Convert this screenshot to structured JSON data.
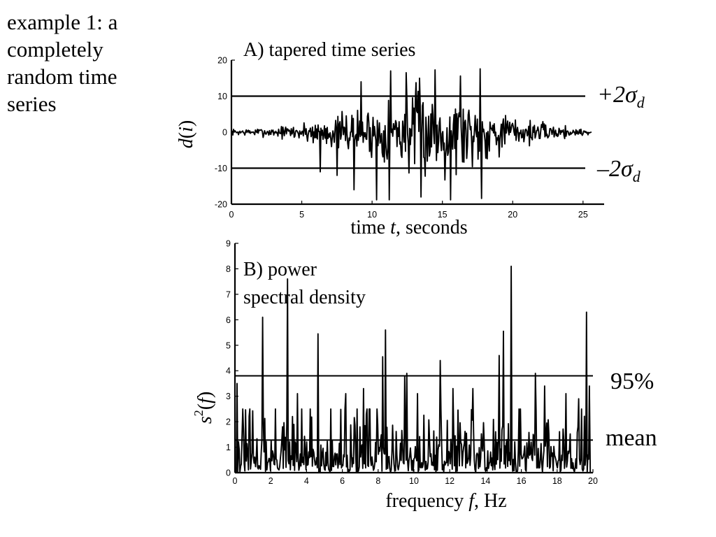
{
  "slide": {
    "title_lines": [
      "example 1: a",
      "completely",
      "random time",
      "series"
    ]
  },
  "chart_data": [
    {
      "type": "line",
      "title": "A) tapered time series",
      "xlabel": "time t, seconds",
      "ylabel": "d(i)",
      "xlim": [
        0,
        26.5
      ],
      "ylim": [
        -20,
        20
      ],
      "x_ticks": [
        0,
        5,
        10,
        15,
        20,
        25
      ],
      "y_ticks": [
        20,
        10,
        0,
        -10,
        -20
      ],
      "x_range": [
        0,
        25.6
      ],
      "n_points": 512,
      "envelope": [
        [
          0,
          1.2
        ],
        [
          3,
          2.0
        ],
        [
          5,
          4.0
        ],
        [
          7,
          6.5
        ],
        [
          9.5,
          10.0
        ],
        [
          12,
          15.0
        ],
        [
          13,
          18.0
        ],
        [
          15.5,
          18.0
        ],
        [
          17,
          15.0
        ],
        [
          19,
          9.0
        ],
        [
          21,
          5.0
        ],
        [
          23,
          3.0
        ],
        [
          25.6,
          1.2
        ]
      ],
      "peaks": [
        {
          "x": 11.3,
          "y": 17
        },
        {
          "x": 12.4,
          "y": 16.5
        },
        {
          "x": 13.4,
          "y": 15
        },
        {
          "x": 14.5,
          "y": 17.3
        },
        {
          "x": 15.6,
          "y": 19.7
        },
        {
          "x": 16.3,
          "y": 15.6
        },
        {
          "x": 17.7,
          "y": 17.6
        },
        {
          "x": 10.3,
          "y": -18.8
        },
        {
          "x": 11.2,
          "y": -18.8
        },
        {
          "x": 13.5,
          "y": -18.0
        },
        {
          "x": 15.6,
          "y": -18.8
        },
        {
          "x": 17.8,
          "y": -18.4
        },
        {
          "x": 8.7,
          "y": -16.0
        },
        {
          "x": 6.3,
          "y": -11.0
        },
        {
          "x": 7.5,
          "y": -12.0
        },
        {
          "x": 9.2,
          "y": 14.0
        }
      ],
      "reference_lines": [
        {
          "name": "+2σd",
          "y": 10
        },
        {
          "name": "−2σd",
          "y": -10
        }
      ]
    },
    {
      "type": "line",
      "title_lines": [
        "B) power",
        "spectral density"
      ],
      "xlabel": "frequency f, Hz",
      "ylabel": "s2(f)",
      "xlim": [
        0,
        20
      ],
      "ylim": [
        0,
        9
      ],
      "x_ticks": [
        0,
        2,
        4,
        6,
        8,
        10,
        12,
        14,
        16,
        18,
        20
      ],
      "y_ticks": [
        9,
        8,
        7,
        6,
        5,
        4,
        3,
        2,
        1,
        0
      ],
      "x_range": [
        0,
        19.8
      ],
      "n_points": 500,
      "baseline_max": 2.5,
      "peaks": [
        {
          "x": 1.55,
          "y": 6.1
        },
        {
          "x": 2.95,
          "y": 7.6
        },
        {
          "x": 4.65,
          "y": 5.45
        },
        {
          "x": 8.25,
          "y": 4.55
        },
        {
          "x": 8.4,
          "y": 5.6
        },
        {
          "x": 9.5,
          "y": 3.8
        },
        {
          "x": 9.6,
          "y": 3.9
        },
        {
          "x": 11.45,
          "y": 4.4
        },
        {
          "x": 14.75,
          "y": 4.6
        },
        {
          "x": 15.0,
          "y": 5.55
        },
        {
          "x": 15.45,
          "y": 8.1
        },
        {
          "x": 16.8,
          "y": 3.9
        },
        {
          "x": 19.65,
          "y": 6.3
        },
        {
          "x": 19.8,
          "y": 3.4
        },
        {
          "x": 0.1,
          "y": 3.5
        },
        {
          "x": 3.5,
          "y": 3.1
        },
        {
          "x": 6.2,
          "y": 3.1
        },
        {
          "x": 7.2,
          "y": 3.3
        },
        {
          "x": 10.2,
          "y": 3.1
        },
        {
          "x": 12.2,
          "y": 3.3
        },
        {
          "x": 13.3,
          "y": 3.3
        },
        {
          "x": 17.3,
          "y": 3.4
        },
        {
          "x": 18.5,
          "y": 3.1
        },
        {
          "x": 19.2,
          "y": 2.9
        }
      ],
      "reference_lines": [
        {
          "name": "95%",
          "y": 3.8
        },
        {
          "name": "mean",
          "y": 1.28
        }
      ]
    }
  ]
}
